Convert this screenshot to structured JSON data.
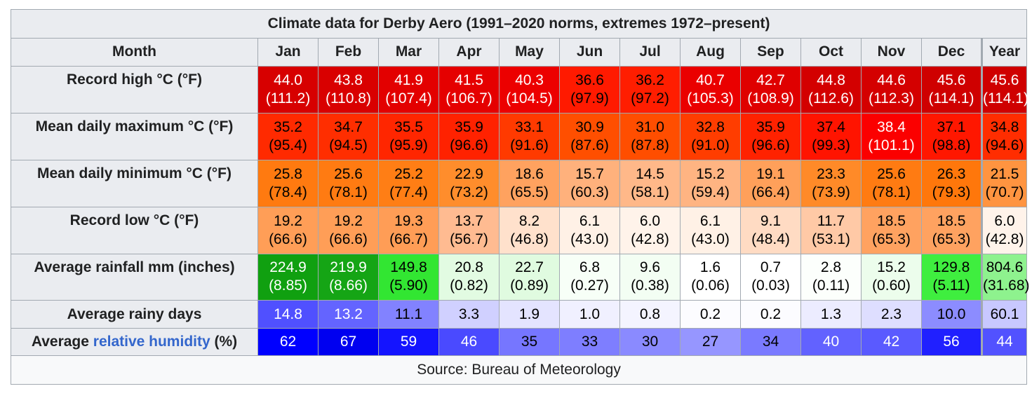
{
  "title": "Climate data for Derby Aero (1991–2020 norms, extremes 1972–present)",
  "header": {
    "month_label": "Month",
    "months": [
      "Jan",
      "Feb",
      "Mar",
      "Apr",
      "May",
      "Jun",
      "Jul",
      "Aug",
      "Sep",
      "Oct",
      "Nov",
      "Dec",
      "Year"
    ]
  },
  "rows": [
    {
      "label": "Record high °C (°F)",
      "cells": [
        {
          "main": "44.0",
          "sub": "(111.2)",
          "bg": "#d70000",
          "fg": "#ffffff"
        },
        {
          "main": "43.8",
          "sub": "(110.8)",
          "bg": "#d90000",
          "fg": "#ffffff"
        },
        {
          "main": "41.9",
          "sub": "(107.4)",
          "bg": "#e30000",
          "fg": "#ffffff"
        },
        {
          "main": "41.5",
          "sub": "(106.7)",
          "bg": "#e50000",
          "fg": "#ffffff"
        },
        {
          "main": "40.3",
          "sub": "(104.5)",
          "bg": "#ec0000",
          "fg": "#ffffff"
        },
        {
          "main": "36.6",
          "sub": "(97.9)",
          "bg": "#ff1a00",
          "fg": "#000000"
        },
        {
          "main": "36.2",
          "sub": "(97.2)",
          "bg": "#ff1e00",
          "fg": "#000000"
        },
        {
          "main": "40.7",
          "sub": "(105.3)",
          "bg": "#ea0000",
          "fg": "#ffffff"
        },
        {
          "main": "42.7",
          "sub": "(108.9)",
          "bg": "#df0000",
          "fg": "#ffffff"
        },
        {
          "main": "44.8",
          "sub": "(112.6)",
          "bg": "#d30000",
          "fg": "#ffffff"
        },
        {
          "main": "44.6",
          "sub": "(112.3)",
          "bg": "#d40000",
          "fg": "#ffffff"
        },
        {
          "main": "45.6",
          "sub": "(114.1)",
          "bg": "#cf0000",
          "fg": "#ffffff"
        },
        {
          "main": "45.6",
          "sub": "(114.1)",
          "bg": "#cf0000",
          "fg": "#ffffff"
        }
      ]
    },
    {
      "label": "Mean daily maximum °C (°F)",
      "cells": [
        {
          "main": "35.2",
          "sub": "(95.4)",
          "bg": "#ff2a00",
          "fg": "#000000"
        },
        {
          "main": "34.7",
          "sub": "(94.5)",
          "bg": "#ff2e00",
          "fg": "#000000"
        },
        {
          "main": "35.5",
          "sub": "(95.9)",
          "bg": "#ff2600",
          "fg": "#000000"
        },
        {
          "main": "35.9",
          "sub": "(96.6)",
          "bg": "#ff2200",
          "fg": "#000000"
        },
        {
          "main": "33.1",
          "sub": "(91.6)",
          "bg": "#ff3a00",
          "fg": "#000000"
        },
        {
          "main": "30.9",
          "sub": "(87.6)",
          "bg": "#ff4f00",
          "fg": "#000000"
        },
        {
          "main": "31.0",
          "sub": "(87.8)",
          "bg": "#ff4e00",
          "fg": "#000000"
        },
        {
          "main": "32.8",
          "sub": "(91.0)",
          "bg": "#ff3d00",
          "fg": "#000000"
        },
        {
          "main": "35.9",
          "sub": "(96.6)",
          "bg": "#ff2200",
          "fg": "#000000"
        },
        {
          "main": "37.4",
          "sub": "(99.3)",
          "bg": "#ff1400",
          "fg": "#000000"
        },
        {
          "main": "38.4",
          "sub": "(101.1)",
          "bg": "#fb0000",
          "fg": "#ffffff"
        },
        {
          "main": "37.1",
          "sub": "(98.8)",
          "bg": "#ff1700",
          "fg": "#000000"
        },
        {
          "main": "34.8",
          "sub": "(94.6)",
          "bg": "#ff2d00",
          "fg": "#000000"
        }
      ]
    },
    {
      "label": "Mean daily minimum °C (°F)",
      "cells": [
        {
          "main": "25.8",
          "sub": "(78.4)",
          "bg": "#ff7a10",
          "fg": "#000000"
        },
        {
          "main": "25.6",
          "sub": "(78.1)",
          "bg": "#ff7b12",
          "fg": "#000000"
        },
        {
          "main": "25.2",
          "sub": "(77.4)",
          "bg": "#ff7e15",
          "fg": "#000000"
        },
        {
          "main": "22.9",
          "sub": "(73.2)",
          "bg": "#ff8d2c",
          "fg": "#000000"
        },
        {
          "main": "18.6",
          "sub": "(65.5)",
          "bg": "#ffa25f",
          "fg": "#000000"
        },
        {
          "main": "15.7",
          "sub": "(60.3)",
          "bg": "#ffb17c",
          "fg": "#000000"
        },
        {
          "main": "14.5",
          "sub": "(58.1)",
          "bg": "#ffb889",
          "fg": "#000000"
        },
        {
          "main": "15.2",
          "sub": "(59.4)",
          "bg": "#ffb482",
          "fg": "#000000"
        },
        {
          "main": "19.1",
          "sub": "(66.4)",
          "bg": "#ffa05a",
          "fg": "#000000"
        },
        {
          "main": "23.3",
          "sub": "(73.9)",
          "bg": "#ff8a28",
          "fg": "#000000"
        },
        {
          "main": "25.6",
          "sub": "(78.1)",
          "bg": "#ff7b12",
          "fg": "#000000"
        },
        {
          "main": "26.3",
          "sub": "(79.3)",
          "bg": "#ff770b",
          "fg": "#000000"
        },
        {
          "main": "21.5",
          "sub": "(70.7)",
          "bg": "#ff9440",
          "fg": "#000000"
        }
      ]
    },
    {
      "label": "Record low °C (°F)",
      "cells": [
        {
          "main": "19.2",
          "sub": "(66.6)",
          "bg": "#ff9e57",
          "fg": "#000000"
        },
        {
          "main": "19.2",
          "sub": "(66.6)",
          "bg": "#ff9e57",
          "fg": "#000000"
        },
        {
          "main": "19.3",
          "sub": "(66.7)",
          "bg": "#ff9d56",
          "fg": "#000000"
        },
        {
          "main": "13.7",
          "sub": "(56.7)",
          "bg": "#ffbb91",
          "fg": "#000000"
        },
        {
          "main": "8.2",
          "sub": "(46.8)",
          "bg": "#ffe1cc",
          "fg": "#000000"
        },
        {
          "main": "6.1",
          "sub": "(43.0)",
          "bg": "#fff1e6",
          "fg": "#000000"
        },
        {
          "main": "6.0",
          "sub": "(42.8)",
          "bg": "#fff3ea",
          "fg": "#000000"
        },
        {
          "main": "6.1",
          "sub": "(43.0)",
          "bg": "#fff1e6",
          "fg": "#000000"
        },
        {
          "main": "9.1",
          "sub": "(48.4)",
          "bg": "#ffdbc3",
          "fg": "#000000"
        },
        {
          "main": "11.7",
          "sub": "(53.1)",
          "bg": "#ffc9a6",
          "fg": "#000000"
        },
        {
          "main": "18.5",
          "sub": "(65.3)",
          "bg": "#ffa260",
          "fg": "#000000"
        },
        {
          "main": "18.5",
          "sub": "(65.3)",
          "bg": "#ffa260",
          "fg": "#000000"
        },
        {
          "main": "6.0",
          "sub": "(42.8)",
          "bg": "#fff3ea",
          "fg": "#000000"
        }
      ]
    },
    {
      "label": "Average rainfall mm (inches)",
      "cells": [
        {
          "main": "224.9",
          "sub": "(8.85)",
          "bg": "#10a010",
          "fg": "#ffffff"
        },
        {
          "main": "219.9",
          "sub": "(8.66)",
          "bg": "#15a515",
          "fg": "#ffffff"
        },
        {
          "main": "149.8",
          "sub": "(5.90)",
          "bg": "#32e632",
          "fg": "#000000"
        },
        {
          "main": "20.8",
          "sub": "(0.82)",
          "bg": "#e2fbe2",
          "fg": "#000000"
        },
        {
          "main": "22.7",
          "sub": "(0.89)",
          "bg": "#e0fbe0",
          "fg": "#000000"
        },
        {
          "main": "6.8",
          "sub": "(0.27)",
          "bg": "#f7fff7",
          "fg": "#000000"
        },
        {
          "main": "9.6",
          "sub": "(0.38)",
          "bg": "#f3fef3",
          "fg": "#000000"
        },
        {
          "main": "1.6",
          "sub": "(0.06)",
          "bg": "#ffffff",
          "fg": "#000000"
        },
        {
          "main": "0.7",
          "sub": "(0.03)",
          "bg": "#ffffff",
          "fg": "#000000"
        },
        {
          "main": "2.8",
          "sub": "(0.11)",
          "bg": "#fcfffc",
          "fg": "#000000"
        },
        {
          "main": "15.2",
          "sub": "(0.60)",
          "bg": "#ecfdec",
          "fg": "#000000"
        },
        {
          "main": "129.8",
          "sub": "(5.11)",
          "bg": "#3fee3f",
          "fg": "#000000"
        },
        {
          "main": "804.6",
          "sub": "(31.68)",
          "bg": "#8ef28e",
          "fg": "#000000"
        }
      ]
    },
    {
      "label": "Average rainy days",
      "cells": [
        {
          "main": "14.8",
          "bg": "#5050ff",
          "fg": "#ffffff"
        },
        {
          "main": "13.2",
          "bg": "#6464ff",
          "fg": "#ffffff"
        },
        {
          "main": "11.1",
          "bg": "#8282ff",
          "fg": "#000000"
        },
        {
          "main": "3.3",
          "bg": "#d0d0ff",
          "fg": "#000000"
        },
        {
          "main": "1.9",
          "bg": "#e4e4ff",
          "fg": "#000000"
        },
        {
          "main": "1.0",
          "bg": "#f0f0ff",
          "fg": "#000000"
        },
        {
          "main": "0.8",
          "bg": "#f4f4ff",
          "fg": "#000000"
        },
        {
          "main": "0.2",
          "bg": "#fcfcff",
          "fg": "#000000"
        },
        {
          "main": "0.2",
          "bg": "#fcfcff",
          "fg": "#000000"
        },
        {
          "main": "1.3",
          "bg": "#ececff",
          "fg": "#000000"
        },
        {
          "main": "2.3",
          "bg": "#dedeff",
          "fg": "#000000"
        },
        {
          "main": "10.0",
          "bg": "#8c8cff",
          "fg": "#000000"
        },
        {
          "main": "60.1",
          "bg": "#c8c8ff",
          "fg": "#000000"
        }
      ]
    },
    {
      "label_pre": "Average ",
      "label_link": "relative humidity",
      "label_post": " (%)",
      "cells": [
        {
          "main": "62",
          "bg": "#0000ff",
          "fg": "#ffffff"
        },
        {
          "main": "67",
          "bg": "#0000f0",
          "fg": "#ffffff"
        },
        {
          "main": "59",
          "bg": "#1414ff",
          "fg": "#ffffff"
        },
        {
          "main": "46",
          "bg": "#4a4aff",
          "fg": "#ffffff"
        },
        {
          "main": "35",
          "bg": "#7676ff",
          "fg": "#000000"
        },
        {
          "main": "33",
          "bg": "#7e7eff",
          "fg": "#000000"
        },
        {
          "main": "30",
          "bg": "#8a8aff",
          "fg": "#000000"
        },
        {
          "main": "27",
          "bg": "#9696ff",
          "fg": "#000000"
        },
        {
          "main": "34",
          "bg": "#7a7aff",
          "fg": "#000000"
        },
        {
          "main": "40",
          "bg": "#6262ff",
          "fg": "#ffffff"
        },
        {
          "main": "42",
          "bg": "#5a5aff",
          "fg": "#ffffff"
        },
        {
          "main": "56",
          "bg": "#2020ff",
          "fg": "#ffffff"
        },
        {
          "main": "44",
          "bg": "#5252ff",
          "fg": "#ffffff"
        }
      ]
    }
  ],
  "source": "Source: Bureau of Meteorology"
}
